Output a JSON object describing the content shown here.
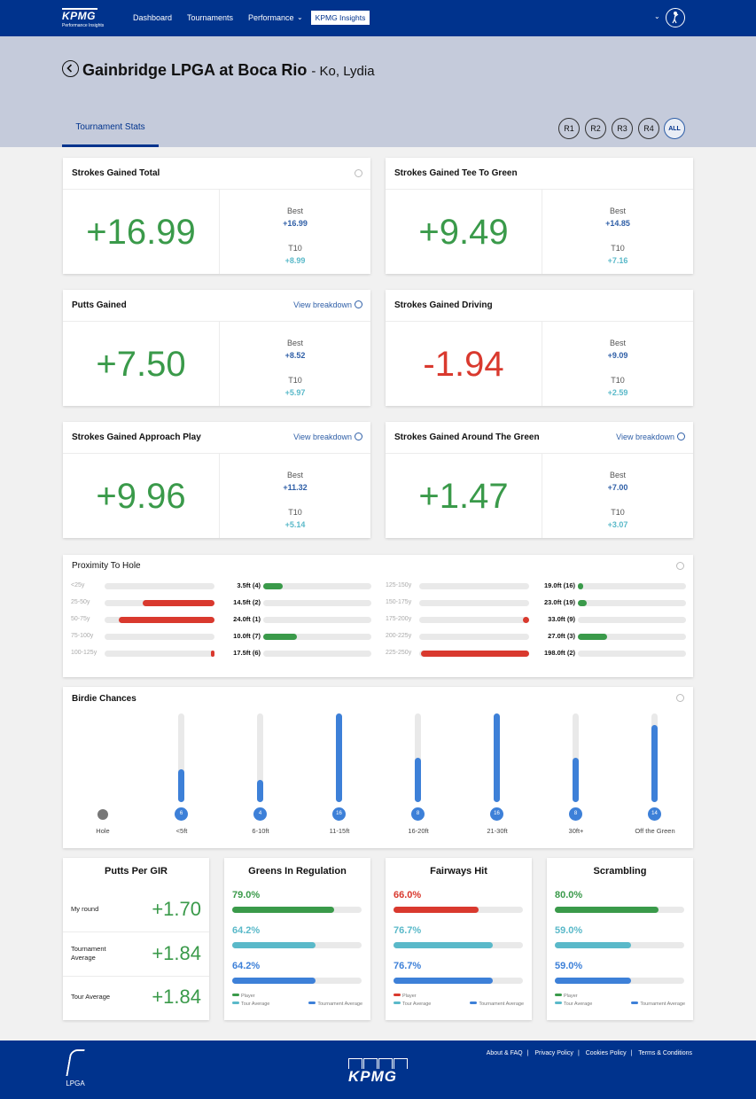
{
  "nav": {
    "brand": "KPMG",
    "tagline": "Performance Insights",
    "links": [
      "Dashboard",
      "Tournaments",
      "Performance"
    ],
    "performance_chevron": "⌄",
    "active": "KPMG Insights",
    "user_chevron": "⌄"
  },
  "header": {
    "title": "Gainbridge LPGA at Boca Rio",
    "subtitle": "- Ko, Lydia",
    "tab": "Tournament Stats",
    "rounds": [
      "R1",
      "R2",
      "R3",
      "R4",
      "ALL"
    ],
    "active_round": "ALL"
  },
  "labels": {
    "best": "Best",
    "t10": "T10",
    "view_breakdown": "View breakdown"
  },
  "stat_cards": [
    {
      "title": "Strokes Gained Total",
      "value": "+16.99",
      "best": "+16.99",
      "t10": "+8.99",
      "negative": false,
      "link": false
    },
    {
      "title": "Strokes Gained Tee To Green",
      "value": "+9.49",
      "best": "+14.85",
      "t10": "+7.16",
      "negative": false,
      "link": false
    },
    {
      "title": "Putts Gained",
      "value": "+7.50",
      "best": "+8.52",
      "t10": "+5.97",
      "negative": false,
      "link": true
    },
    {
      "title": "Strokes Gained Driving",
      "value": "-1.94",
      "best": "+9.09",
      "t10": "+2.59",
      "negative": true,
      "link": false
    },
    {
      "title": "Strokes Gained Approach Play",
      "value": "+9.96",
      "best": "+11.32",
      "t10": "+5.14",
      "negative": false,
      "link": true
    },
    {
      "title": "Strokes Gained Around The Green",
      "value": "+1.47",
      "best": "+7.00",
      "t10": "+3.07",
      "negative": false,
      "link": true
    }
  ],
  "proximity": {
    "title": "Proximity To Hole",
    "left": [
      {
        "range": "<25y",
        "value": "3.5ft (4)",
        "neg": 0,
        "pos": 0.18
      },
      {
        "range": "25-50y",
        "value": "14.5ft (2)",
        "neg": 0.65,
        "pos": 0
      },
      {
        "range": "50-75y",
        "value": "24.0ft (1)",
        "neg": 0.87,
        "pos": 0
      },
      {
        "range": "75-100y",
        "value": "10.0ft (7)",
        "neg": 0,
        "pos": 0.31
      },
      {
        "range": "100-125y",
        "value": "17.5ft (6)",
        "neg": 0.03,
        "pos": 0
      }
    ],
    "right": [
      {
        "range": "125-150y",
        "value": "19.0ft (16)",
        "neg": 0,
        "pos": 0.05
      },
      {
        "range": "150-175y",
        "value": "23.0ft (19)",
        "neg": 0,
        "pos": 0.08
      },
      {
        "range": "175-200y",
        "value": "33.0ft (9)",
        "neg": 0.06,
        "pos": 0
      },
      {
        "range": "200-225y",
        "value": "27.0ft (3)",
        "neg": 0,
        "pos": 0.27
      },
      {
        "range": "225-250y",
        "value": "198.0ft (2)",
        "neg": 0.98,
        "pos": 0
      }
    ]
  },
  "birdie": {
    "title": "Birdie Chances",
    "max": 16,
    "columns": [
      {
        "label": "Hole",
        "count": null
      },
      {
        "label": "<5ft",
        "count": 6
      },
      {
        "label": "6-10ft",
        "count": 4
      },
      {
        "label": "11-15ft",
        "count": 16
      },
      {
        "label": "16-20ft",
        "count": 8
      },
      {
        "label": "21-30ft",
        "count": 16
      },
      {
        "label": "30ft+",
        "count": 8
      },
      {
        "label": "Off the Green",
        "count": 14
      }
    ]
  },
  "putts_per_gir": {
    "title": "Putts Per GIR",
    "rows": [
      {
        "label": "My round",
        "value": "+1.70"
      },
      {
        "label": "Tournament Average",
        "value": "+1.84"
      },
      {
        "label": "Tour Average",
        "value": "+1.84"
      }
    ]
  },
  "legend": {
    "player": "Player",
    "tour": "Tour Average",
    "tournament": "Tournament Average"
  },
  "pct_cards": [
    {
      "title": "Greens In Regulation",
      "player": "79.0%",
      "tour": "64.2%",
      "tournament": "64.2%",
      "player_frac": 0.79,
      "tour_frac": 0.642,
      "tournament_frac": 0.642,
      "player_color": "#3a9a4a"
    },
    {
      "title": "Fairways Hit",
      "player": "66.0%",
      "tour": "76.7%",
      "tournament": "76.7%",
      "player_frac": 0.66,
      "tour_frac": 0.767,
      "tournament_frac": 0.767,
      "player_color": "#d9392e"
    },
    {
      "title": "Scrambling",
      "player": "80.0%",
      "tour": "59.0%",
      "tournament": "59.0%",
      "player_frac": 0.8,
      "tour_frac": 0.59,
      "tournament_frac": 0.59,
      "player_color": "#3a9a4a"
    }
  ],
  "colors": {
    "navy": "#00338d",
    "green": "#3a9a4a",
    "red": "#d9392e",
    "teal": "#5ab9c9",
    "blue": "#3d80d8"
  },
  "footer": {
    "lpga": "LPGA",
    "kpmg": "KPMG",
    "links": [
      "About & FAQ",
      "Privacy Policy",
      "Cookies Policy",
      "Terms & Conditions"
    ]
  }
}
